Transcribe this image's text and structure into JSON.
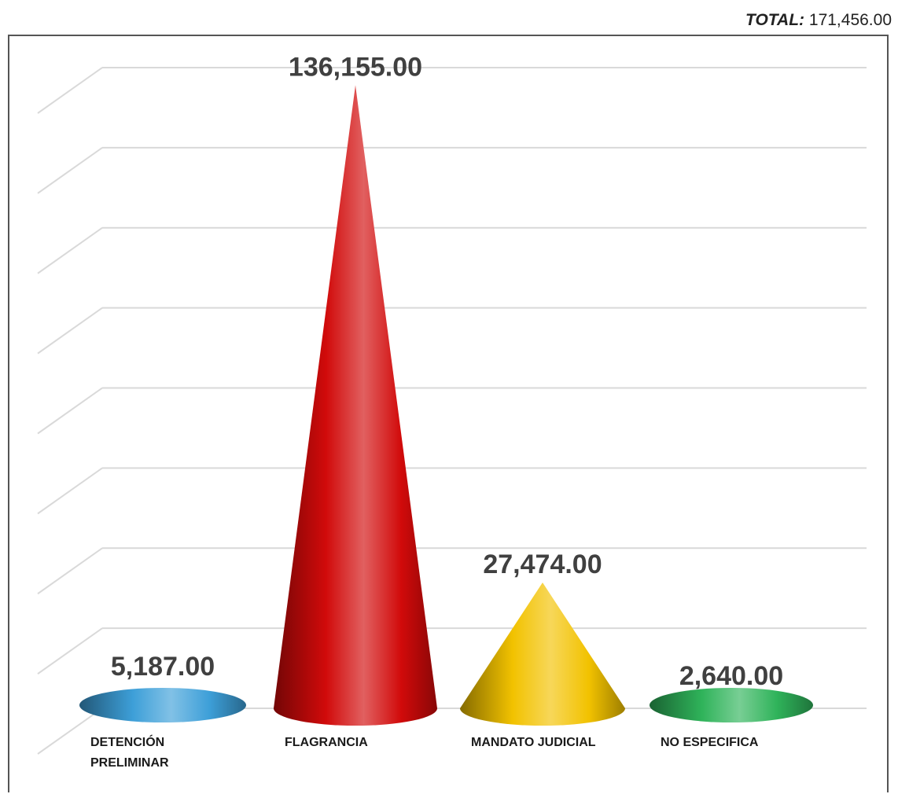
{
  "total": {
    "label": "TOTAL:",
    "value": "171,456.00"
  },
  "chart_data": {
    "type": "bar",
    "bar_shape": "3d-cone",
    "categories": [
      [
        "DETENCIÓN",
        "PRELIMINAR"
      ],
      [
        "FLAGRANCIA"
      ],
      [
        "MANDATO JUDICIAL"
      ],
      [
        "NO ESPECIFICA"
      ]
    ],
    "values": [
      5187,
      136155,
      27474,
      2640
    ],
    "value_labels": [
      "5,187.00",
      "136,155.00",
      "27,474.00",
      "2,640.00"
    ],
    "colors": [
      "#3d9fd8",
      "#d10a0a",
      "#f2c200",
      "#2fb35a"
    ],
    "ylim": [
      0,
      140000
    ],
    "y_grid_step": 17500,
    "grid": true,
    "legend": "none"
  }
}
